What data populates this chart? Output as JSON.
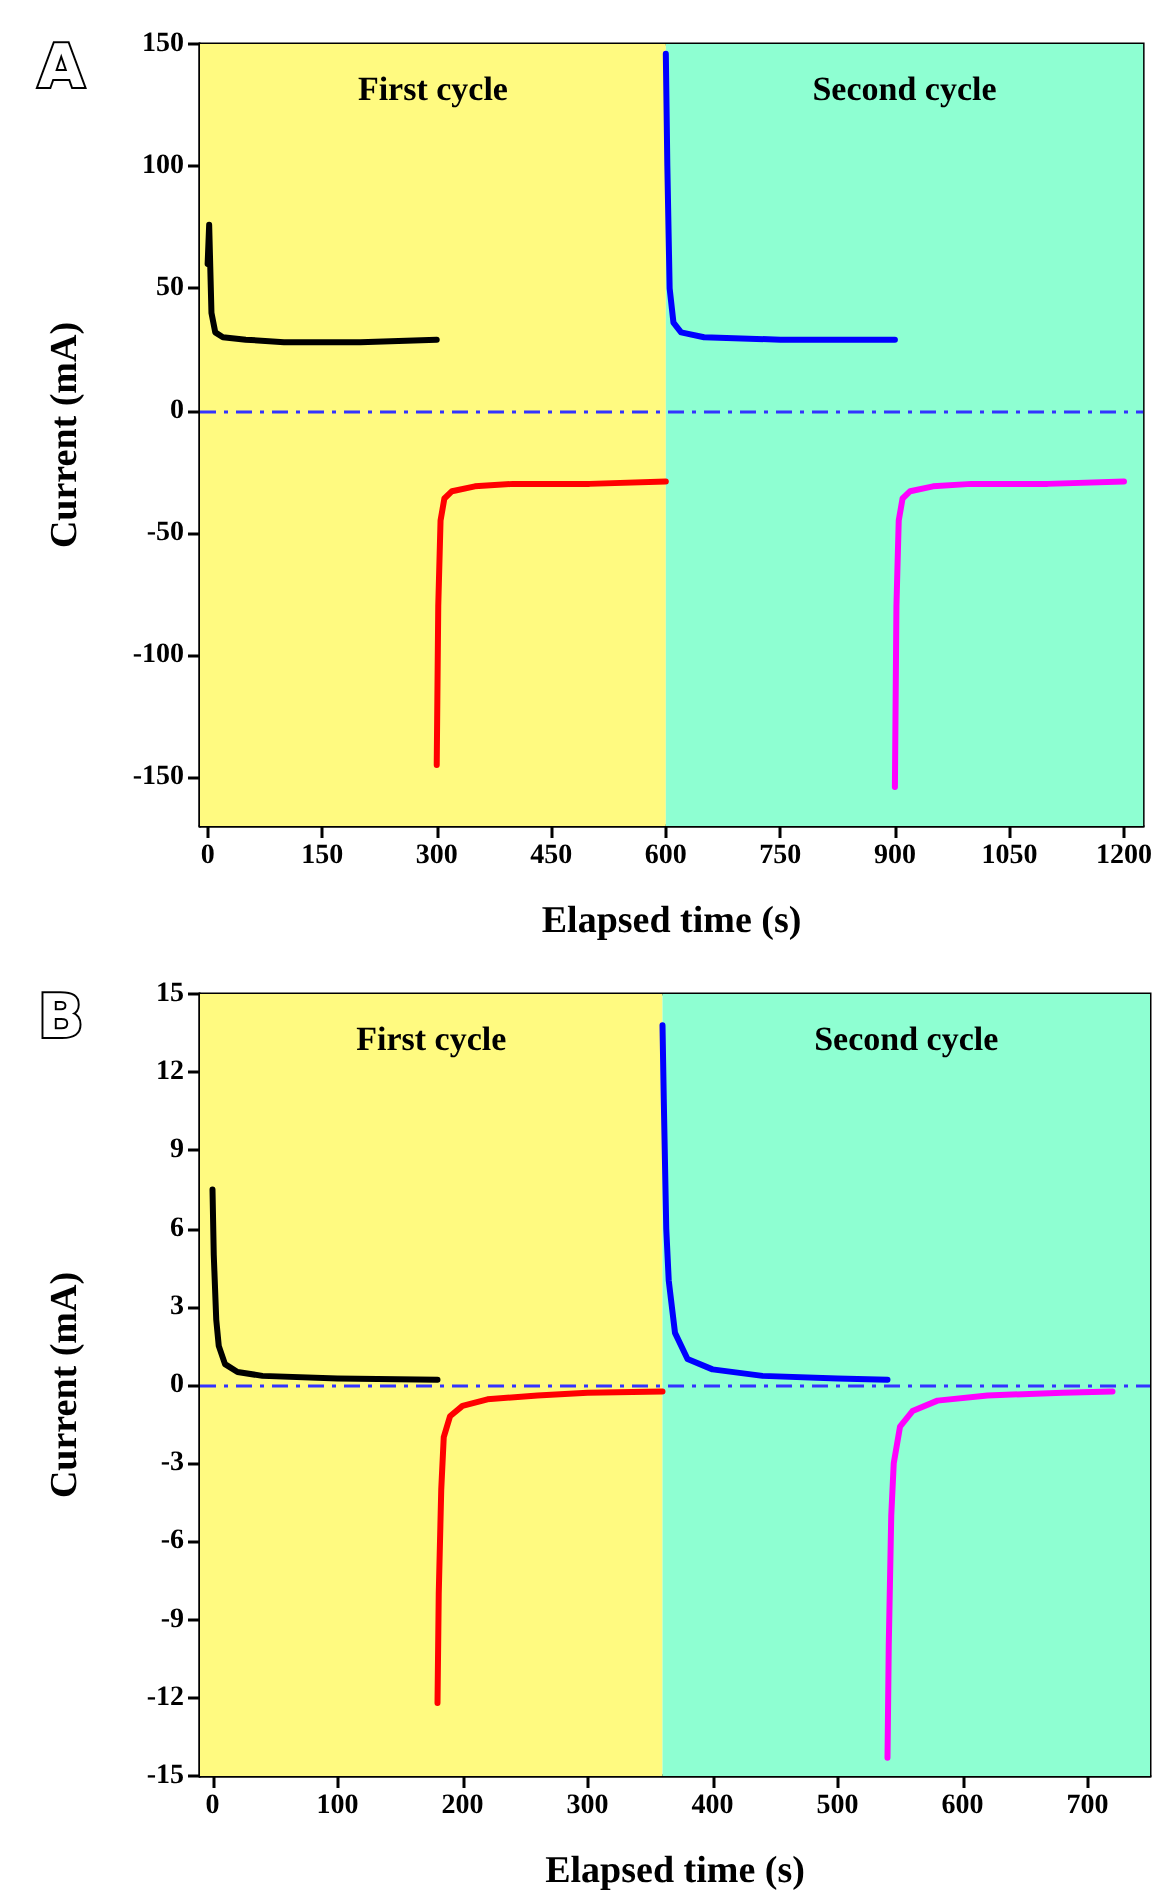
{
  "chart_data": [
    {
      "type": "line",
      "title": "A",
      "xlabel": "Elapsed time (s)",
      "ylabel": "Current (mA)",
      "xlim": [
        -10,
        1225
      ],
      "xticks": [
        0,
        150,
        300,
        450,
        600,
        750,
        900,
        1050,
        1200
      ],
      "ylim": [
        -170,
        150
      ],
      "yticks": [
        -150,
        -100,
        -50,
        0,
        50,
        100,
        150
      ],
      "grid": false,
      "marker": "none",
      "line_style": "solid",
      "series": [
        {
          "color": "#000000",
          "x": [
            0,
            2,
            5,
            10,
            20,
            50,
            100,
            200,
            300
          ],
          "values": [
            60,
            76,
            40,
            32,
            30,
            29,
            28,
            28,
            29
          ]
        },
        {
          "color": "#ff0000",
          "x": [
            300,
            302,
            305,
            310,
            320,
            350,
            400,
            500,
            600
          ],
          "values": [
            -145,
            -80,
            -45,
            -36,
            -33,
            -31,
            -30,
            -30,
            -29
          ]
        },
        {
          "color": "#0000ff",
          "x": [
            600,
            602,
            605,
            610,
            620,
            650,
            750,
            900
          ],
          "values": [
            146,
            100,
            50,
            36,
            32,
            30,
            29,
            29
          ]
        },
        {
          "color": "#ff00ff",
          "x": [
            900,
            902,
            905,
            910,
            920,
            950,
            1000,
            1100,
            1200
          ],
          "values": [
            -154,
            -80,
            -45,
            -36,
            -33,
            -31,
            -30,
            -30,
            -29
          ]
        }
      ],
      "bands": [
        {
          "axis": "x",
          "from": -10,
          "to": 600,
          "label": "First cycle",
          "color": "#fffa80"
        },
        {
          "axis": "x",
          "from": 600,
          "to": 1225,
          "label": "Second cycle",
          "color": "#8effd2"
        }
      ],
      "ref_lines": [
        {
          "axis": "y",
          "value": 0,
          "color": "#3333ff",
          "line_style": "dashed"
        }
      ]
    },
    {
      "type": "line",
      "title": "B",
      "xlabel": "Elapsed time (s)",
      "ylabel": "Current (mA)",
      "xlim": [
        -10,
        750
      ],
      "xticks": [
        0,
        100,
        200,
        300,
        400,
        500,
        600,
        700
      ],
      "ylim": [
        -15,
        15
      ],
      "yticks": [
        -15,
        -12,
        -9,
        -6,
        -3,
        0,
        3,
        6,
        9,
        12,
        15
      ],
      "grid": false,
      "marker": "none",
      "line_style": "solid",
      "series": [
        {
          "color": "#000000",
          "x": [
            0,
            1,
            3,
            5,
            10,
            20,
            40,
            100,
            180
          ],
          "values": [
            7.5,
            5,
            2.5,
            1.5,
            0.8,
            0.5,
            0.35,
            0.25,
            0.2
          ]
        },
        {
          "color": "#ff0000",
          "x": [
            180,
            181,
            183,
            185,
            190,
            200,
            220,
            260,
            300,
            360
          ],
          "values": [
            -12.2,
            -8,
            -4,
            -2,
            -1.2,
            -0.8,
            -0.55,
            -0.4,
            -0.3,
            -0.25
          ]
        },
        {
          "color": "#0000ff",
          "x": [
            360,
            361,
            363,
            365,
            370,
            380,
            400,
            440,
            500,
            540
          ],
          "values": [
            13.8,
            11,
            6,
            4,
            2,
            1,
            0.6,
            0.35,
            0.25,
            0.2
          ]
        },
        {
          "color": "#ff00ff",
          "x": [
            540,
            541,
            543,
            545,
            550,
            560,
            580,
            620,
            680,
            720
          ],
          "values": [
            -14.3,
            -10,
            -5,
            -3,
            -1.6,
            -1,
            -0.6,
            -0.4,
            -0.3,
            -0.25
          ]
        }
      ],
      "bands": [
        {
          "axis": "x",
          "from": -10,
          "to": 360,
          "label": "First cycle",
          "color": "#fffa80"
        },
        {
          "axis": "x",
          "from": 360,
          "to": 750,
          "label": "Second cycle",
          "color": "#8effd2"
        }
      ],
      "ref_lines": [
        {
          "axis": "y",
          "value": 0,
          "color": "#3333ff",
          "line_style": "dashed"
        }
      ]
    }
  ]
}
